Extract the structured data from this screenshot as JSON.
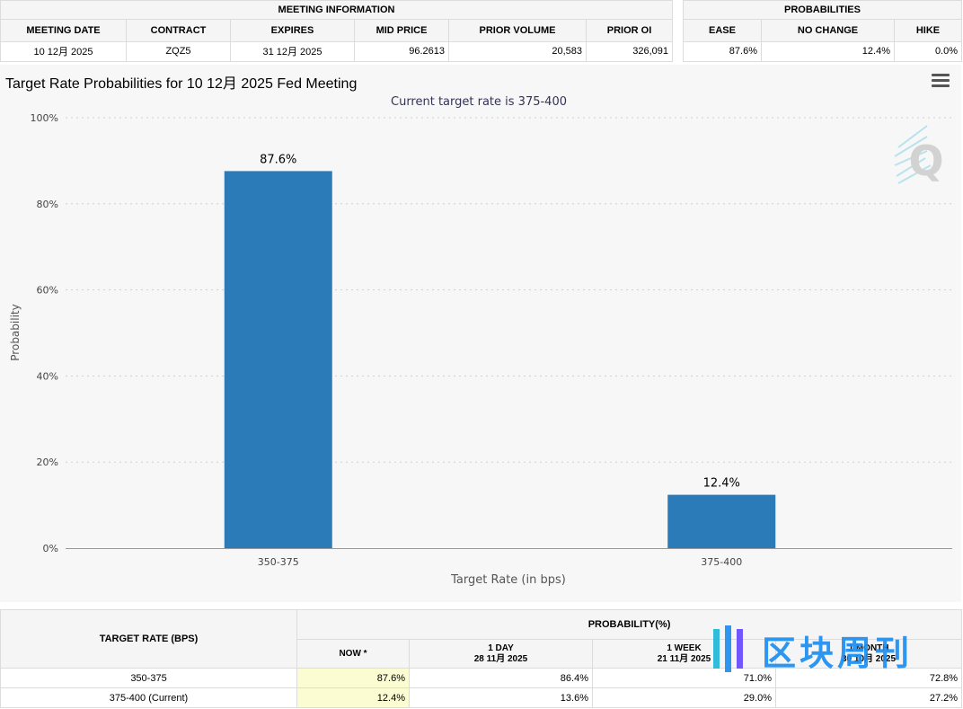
{
  "meeting_info": {
    "section_title": "MEETING INFORMATION",
    "headers": [
      "MEETING DATE",
      "CONTRACT",
      "EXPIRES",
      "MID PRICE",
      "PRIOR VOLUME",
      "PRIOR OI"
    ],
    "values": [
      "10 12月 2025",
      "ZQZ5",
      "31 12月 2025",
      "96.2613",
      "20,583",
      "326,091"
    ]
  },
  "probabilities": {
    "section_title": "PROBABILITIES",
    "headers": [
      "EASE",
      "NO CHANGE",
      "HIKE"
    ],
    "values": [
      "87.6%",
      "12.4%",
      "0.0%"
    ]
  },
  "chart": {
    "title": "Target Rate Probabilities for 10 12月 2025 Fed Meeting",
    "menu_icon": "hamburger-menu-icon",
    "logo_icon": "quikstrike-q-logo-icon"
  },
  "chart_data": {
    "type": "bar",
    "title": "Target Rate Probabilities for 10 12月 2025 Fed Meeting",
    "subtitle": "Current target rate is 375-400",
    "categories": [
      "350-375",
      "375-400"
    ],
    "values": [
      87.6,
      12.4
    ],
    "data_labels": [
      "87.6%",
      "12.4%"
    ],
    "xlabel": "Target Rate (in bps)",
    "ylabel": "Probability",
    "ylim": [
      0,
      100
    ],
    "yticks": [
      "0%",
      "20%",
      "40%",
      "60%",
      "80%",
      "100%"
    ],
    "ytick_values": [
      0,
      20,
      40,
      60,
      80,
      100
    ],
    "grid": true,
    "bar_color": "#2b7bb9"
  },
  "bottom_table": {
    "target_rate_header": "TARGET RATE (BPS)",
    "probability_header": "PROBABILITY(%)",
    "columns": [
      {
        "line1": "NOW *",
        "line2": ""
      },
      {
        "line1": "1 DAY",
        "line2": "28 11月 2025"
      },
      {
        "line1": "1 WEEK",
        "line2": "21 11月 2025"
      },
      {
        "line1": "1 MONTH",
        "line2": "30 10月 2025"
      }
    ],
    "rows": [
      {
        "rate": "350-375",
        "values": [
          "87.6%",
          "86.4%",
          "71.0%",
          "72.8%"
        ]
      },
      {
        "rate": "375-400 (Current)",
        "values": [
          "12.4%",
          "13.6%",
          "29.0%",
          "27.2%"
        ]
      }
    ]
  },
  "watermark": {
    "text": "区块周刊",
    "color": "#1e8ff0"
  }
}
